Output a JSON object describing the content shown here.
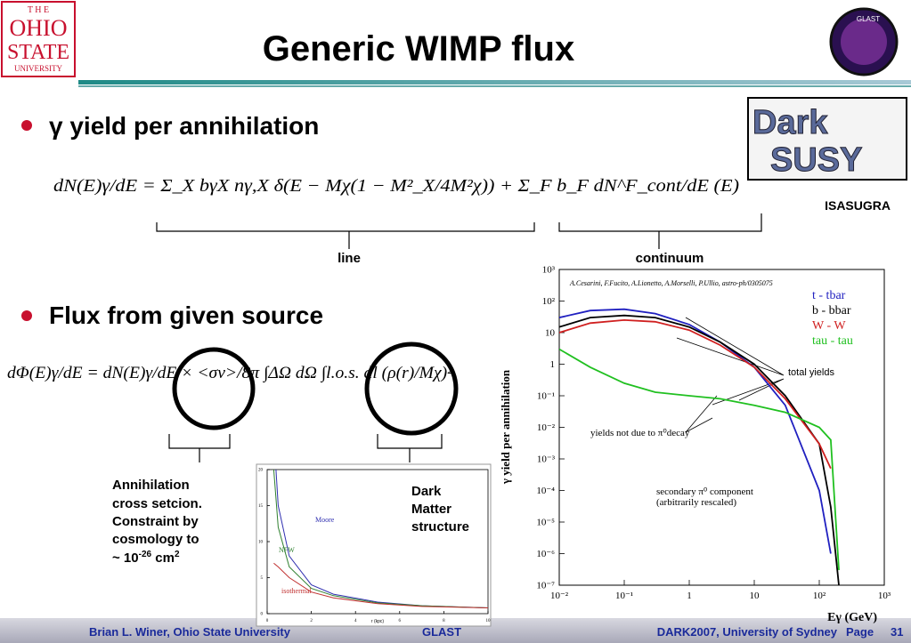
{
  "logo": {
    "the": "T H E",
    "ohio": "OHIO",
    "state": "STATE",
    "university": "UNIVERSITY"
  },
  "glast_logo": "GLAST",
  "darksusy_logo": [
    "Dark",
    "SUSY"
  ],
  "header": {
    "title": "Generic WIMP flux"
  },
  "bullets": [
    "γ yield per annihilation",
    "Flux from given source"
  ],
  "equations": [
    "dN(E)γ/dE = Σ_X bγX nγ,X δ(E − Mχ(1 − M²_X/4M²χ)) + Σ_F b_F dN^F_cont/dE (E)",
    "dΦ(E)γ/dE = dN(E)γ/dE × <σv>/8π ∫ΔΩ dΩ ∫l.o.s. dl (ρ(r)/Mχ)²"
  ],
  "labels": {
    "line": "line",
    "continuum": "continuum",
    "isasugra": "ISASUGRA"
  },
  "annihilation": {
    "lines": [
      "Annihilation",
      "cross setcion.",
      "Constraint by",
      "cosmology to"
    ],
    "last": [
      "~ 10",
      "-26",
      " cm",
      "2"
    ]
  },
  "dark_matter": [
    "Dark",
    "Matter",
    "structure"
  ],
  "footer": {
    "left": "Brian L. Winer, Ohio State University",
    "center": "GLAST",
    "right": "DARK2007, University of Sydney",
    "page_label": "Page",
    "page": "31"
  },
  "yield_plot": {
    "type": "line",
    "log": true,
    "credit": "A.Cesarini, F.Fucito, A.Lionetto, A.Morselli, P.Ullio, astro-ph/0305075",
    "ylabel": "γ yield per annihilation",
    "xlabel": "Eγ (GeV)",
    "annotations": [
      "total yields",
      "yields not due to π⁰decay",
      "secondary π⁰ component",
      "(arbitrarily rescaled)"
    ],
    "xlim": [
      0.01,
      1000
    ],
    "ylim": [
      1e-07,
      1000
    ],
    "xticks": [
      {
        "value": 0.01,
        "label": "10⁻²"
      },
      {
        "value": 0.1,
        "label": "10⁻¹"
      },
      1,
      10,
      {
        "value": 100,
        "label": "10²"
      },
      {
        "value": 1000,
        "label": "10³"
      }
    ],
    "yticks": [
      {
        "value": 1e-07,
        "label": "10⁻⁷"
      },
      {
        "value": 1e-06,
        "label": "10⁻⁶"
      },
      {
        "value": 1e-05,
        "label": "10⁻⁵"
      },
      {
        "value": 0.0001,
        "label": "10⁻⁴"
      },
      {
        "value": 0.001,
        "label": "10⁻³"
      },
      {
        "value": 0.01,
        "label": "10⁻²"
      },
      {
        "value": 0.1,
        "label": "10⁻¹"
      },
      1,
      10,
      {
        "value": 100,
        "label": "10²"
      },
      {
        "value": 1000,
        "label": "10³"
      }
    ],
    "x": [
      0.01,
      0.03,
      0.1,
      0.3,
      1,
      3,
      10,
      30,
      100,
      150,
      200
    ],
    "series": [
      {
        "name": "t - tbar",
        "color": "#2020c0",
        "values": [
          30,
          50,
          55,
          40,
          18,
          5,
          0.8,
          0.05,
          0.0001,
          1e-06,
          null
        ]
      },
      {
        "name": "b - bbar",
        "color": "#000000",
        "values": [
          15,
          30,
          35,
          30,
          15,
          5,
          1,
          0.1,
          0.003,
          3e-05,
          1e-07
        ]
      },
      {
        "name": "W - W",
        "color": "#d02020",
        "values": [
          10,
          20,
          25,
          22,
          12,
          4,
          0.8,
          0.08,
          0.003,
          0.0005,
          null
        ]
      },
      {
        "name": "tau - tau",
        "color": "#20c020",
        "values": [
          3,
          0.8,
          0.25,
          0.13,
          0.1,
          0.08,
          0.05,
          0.03,
          0.01,
          0.004,
          3e-07
        ]
      }
    ]
  },
  "profile_plot": {
    "type": "line",
    "xlabel": "r (kpc)",
    "xlim": [
      0,
      10
    ],
    "ylim": [
      0,
      20
    ],
    "xticks": [
      0,
      2,
      4,
      6,
      8,
      10
    ],
    "yticks": [
      0,
      5,
      10,
      15,
      20
    ],
    "x": [
      0.3,
      0.5,
      1,
      2,
      3,
      5,
      7,
      10
    ],
    "series": [
      {
        "name": "Moore",
        "color": "#3030b0",
        "values": [
          25,
          15,
          8,
          4,
          2.7,
          1.6,
          1.1,
          0.8
        ]
      },
      {
        "name": "NFW",
        "color": "#308030",
        "values": [
          20,
          12,
          6.5,
          3.5,
          2.5,
          1.5,
          1.1,
          0.8
        ]
      },
      {
        "name": "isothermal",
        "color": "#c03030",
        "values": [
          7,
          6.5,
          5,
          3,
          2.2,
          1.4,
          1,
          0.8
        ]
      }
    ]
  }
}
